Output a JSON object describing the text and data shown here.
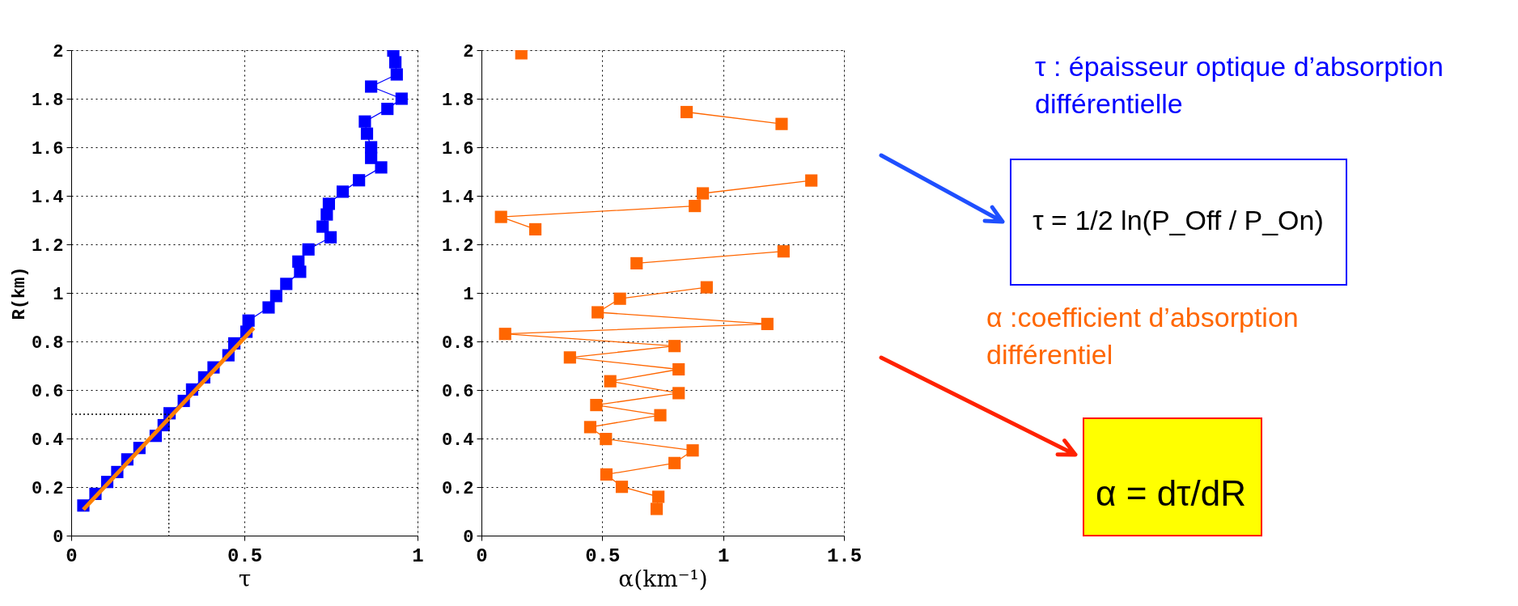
{
  "chart_data": [
    {
      "type": "line",
      "xlabel": "τ",
      "ylabel": "R(km)",
      "xlim": [
        0,
        1
      ],
      "xticks": [
        0,
        0.5,
        1
      ],
      "ylim": [
        0,
        2
      ],
      "yticks": [
        0,
        0.2,
        0.4,
        0.6,
        0.8,
        1,
        1.2,
        1.4,
        1.6,
        1.8,
        2
      ],
      "grid": true,
      "series": [
        {
          "color": "#0000ff",
          "marker": "square",
          "line_style": "solid",
          "x": [
            0.035,
            0.07,
            0.104,
            0.133,
            0.162,
            0.197,
            0.244,
            0.267,
            0.284,
            0.325,
            0.349,
            0.384,
            0.411,
            0.454,
            0.471,
            0.506,
            0.512,
            0.57,
            0.592,
            0.621,
            0.661,
            0.656,
            0.685,
            0.749,
            0.726,
            0.738,
            0.744,
            0.784,
            0.831,
            0.895,
            0.866,
            0.866,
            0.854,
            0.848,
            0.913,
            0.954,
            0.866,
            0.94,
            0.936,
            0.93
          ],
          "values": [
            0.124,
            0.172,
            0.221,
            0.262,
            0.314,
            0.361,
            0.411,
            0.455,
            0.504,
            0.555,
            0.602,
            0.652,
            0.693,
            0.743,
            0.792,
            0.84,
            0.886,
            0.94,
            0.987,
            1.037,
            1.087,
            1.129,
            1.179,
            1.229,
            1.273,
            1.323,
            1.367,
            1.417,
            1.464,
            1.517,
            1.556,
            1.6,
            1.656,
            1.706,
            1.758,
            1.8,
            1.85,
            1.9,
            1.95,
            1.998
          ]
        },
        {
          "color": "#ff8000",
          "marker": "none",
          "line_style": "solid",
          "x": [
            0.035,
            0.527
          ],
          "values": [
            0.107,
            0.856
          ]
        },
        {
          "color": "#000000",
          "marker": "none",
          "line_style": "dotted",
          "x": [
            0,
            0.282,
            0.282
          ],
          "values": [
            0.5,
            0.5,
            0
          ]
        }
      ]
    },
    {
      "type": "line",
      "xlabel": "α(km⁻¹)",
      "xlim": [
        0,
        1.5
      ],
      "xticks": [
        0,
        0.5,
        1,
        1.5
      ],
      "ylim": [
        0,
        2
      ],
      "yticks": [
        0,
        0.2,
        0.4,
        0.6,
        0.8,
        1,
        1.2,
        1.4,
        1.6,
        1.8,
        2
      ],
      "grid": true,
      "series": [
        {
          "color": "#ff6600",
          "marker": "square",
          "line_style": "solid",
          "x": [
            0.725,
            0.732,
            0.581,
            0.517,
            0.799,
            0.874,
            0.515,
            0.45,
            0.74,
            0.475,
            0.816,
            0.533,
            0.816,
            0.366,
            0.799,
            0.098,
            1.183,
            0.481,
            0.573,
            0.932,
            null,
            0.642,
            1.25,
            null,
            0.223,
            0.081,
            0.883,
            0.916,
            1.365,
            null,
            1.242,
            0.849,
            null,
            null,
            null,
            0.165
          ],
          "values": [
            0.11,
            0.16,
            0.201,
            0.252,
            0.299,
            0.351,
            0.398,
            0.447,
            0.496,
            0.538,
            0.587,
            0.636,
            0.685,
            0.734,
            0.781,
            0.831,
            0.872,
            0.92,
            0.976,
            1.023,
            null,
            1.122,
            1.171,
            null,
            1.262,
            1.313,
            1.358,
            1.41,
            1.463,
            null,
            1.696,
            1.745,
            null,
            null,
            null,
            1.987
          ]
        }
      ]
    },
    {
      "type": "other",
      "annotations": [
        "τ : épaisseur optique d’absorption différentielle",
        "τ = 1/2 ln(P_Off / P_On)",
        "α :coefficient d’absorption différentiel",
        "α = dτ/dR"
      ]
    }
  ]
}
